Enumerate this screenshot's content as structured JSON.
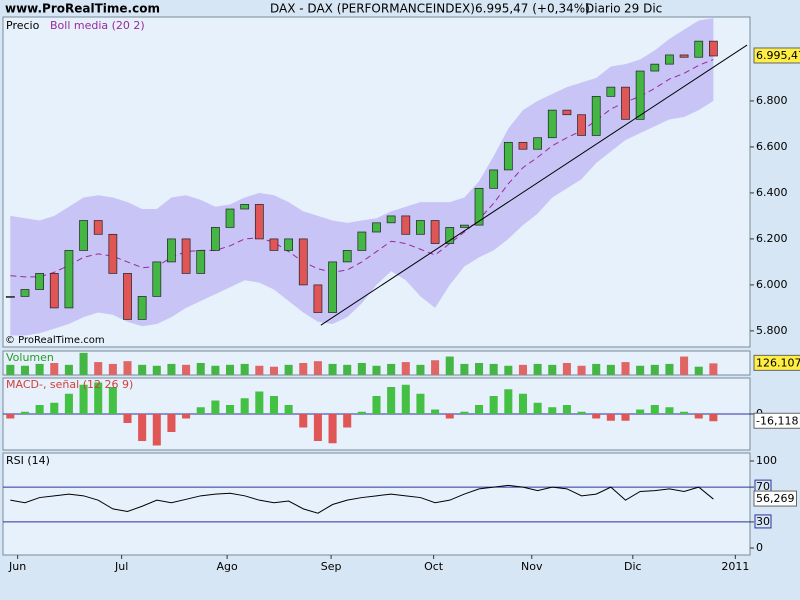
{
  "header": {
    "site": "www.ProRealTime.com",
    "title": "DAX - DAX (PERFORMANCEINDEX)",
    "quote": "6.995,47 (+0,34%)",
    "period": "Diario",
    "date": "29 Dic"
  },
  "chart_data": [
    {
      "type": "candlestick",
      "label": "Precio",
      "overlay_label": "Boll media (20 2)",
      "copyright": "© ProRealTime.com",
      "up_color": "#44b644",
      "down_color": "#e05555",
      "band_color": "#c8c4f6",
      "mid_color": "#9a2a9a",
      "x": [
        0.5,
        1.5,
        2.5,
        3.5,
        4.5,
        5.5,
        6.5,
        7.5,
        8.5,
        9.5,
        10.5,
        11.5,
        12.5,
        13.5,
        14.5,
        15.5,
        16.5,
        17.5,
        18.5,
        19.5,
        20.5,
        21.5,
        22.5,
        23.5,
        24.5,
        25.5,
        26.5,
        27.5,
        28.5,
        29.5,
        30.5,
        31.5,
        32.5,
        33.5,
        34.5,
        35.5,
        36.5,
        37.5,
        38.5,
        39.5,
        40.5,
        41.5,
        42.5,
        43.5,
        44.5,
        45.5,
        46.5,
        47.5,
        48.5
      ],
      "values": [
        5950,
        5980,
        6050,
        5900,
        6150,
        6280,
        6220,
        6050,
        5850,
        5950,
        6100,
        6200,
        6050,
        6150,
        6250,
        6330,
        6350,
        6200,
        6150,
        6200,
        6000,
        5880,
        6100,
        6150,
        6230,
        6270,
        6300,
        6220,
        6280,
        6180,
        6250,
        6260,
        6420,
        6500,
        6620,
        6590,
        6640,
        6760,
        6740,
        6650,
        6820,
        6860,
        6720,
        6930,
        6960,
        7000,
        6990,
        7060,
        6995.47
      ],
      "value_labels": [
        null,
        null,
        null,
        null,
        null,
        null,
        null,
        null,
        null,
        null,
        null,
        null,
        null,
        null,
        null,
        null,
        null,
        null,
        null,
        null,
        null,
        null,
        null,
        null,
        null,
        null,
        null,
        null,
        null,
        null,
        null,
        null,
        null,
        null,
        null,
        null,
        null,
        null,
        null,
        null,
        null,
        null,
        null,
        null,
        null,
        null,
        null,
        null,
        "6.995,47"
      ],
      "band_upper": [
        6300,
        6290,
        6280,
        6300,
        6340,
        6380,
        6390,
        6380,
        6360,
        6330,
        6330,
        6380,
        6390,
        6370,
        6340,
        6350,
        6380,
        6400,
        6390,
        6360,
        6320,
        6300,
        6280,
        6270,
        6280,
        6290,
        6320,
        6340,
        6360,
        6360,
        6360,
        6380,
        6450,
        6560,
        6680,
        6760,
        6800,
        6830,
        6860,
        6880,
        6900,
        6950,
        6960,
        6980,
        7020,
        7070,
        7110,
        7150,
        7160
      ],
      "band_lower": [
        5780,
        5780,
        5790,
        5810,
        5830,
        5860,
        5880,
        5870,
        5840,
        5820,
        5830,
        5860,
        5900,
        5930,
        5960,
        5990,
        6020,
        6010,
        5980,
        5930,
        5880,
        5840,
        5830,
        5860,
        5920,
        6000,
        6060,
        6020,
        5950,
        5900,
        6000,
        6080,
        6120,
        6150,
        6200,
        6260,
        6310,
        6380,
        6420,
        6460,
        6530,
        6580,
        6630,
        6660,
        6690,
        6720,
        6730,
        6760,
        6800
      ],
      "band_mid": [
        6040,
        6035,
        6035,
        6055,
        6085,
        6120,
        6135,
        6125,
        6100,
        6075,
        6080,
        6120,
        6145,
        6150,
        6150,
        6170,
        6200,
        6205,
        6185,
        6145,
        6100,
        6070,
        6055,
        6065,
        6100,
        6145,
        6190,
        6180,
        6155,
        6130,
        6180,
        6230,
        6285,
        6355,
        6440,
        6510,
        6555,
        6605,
        6640,
        6670,
        6715,
        6765,
        6795,
        6820,
        6855,
        6895,
        6920,
        6955,
        6980
      ],
      "trendline": {
        "x": [
          21.7,
          50.8
        ],
        "y": [
          5825,
          7043
        ]
      },
      "xlim": [
        0,
        51
      ],
      "ylim": [
        5730,
        7165
      ],
      "yticks": [
        {
          "value": 5800,
          "label": "5.800"
        },
        {
          "value": 6000,
          "label": "6.000"
        },
        {
          "value": 6200,
          "label": "6.200"
        },
        {
          "value": 6400,
          "label": "6.400"
        },
        {
          "value": 6600,
          "label": "6.600"
        },
        {
          "value": 6800,
          "label": "6.800"
        }
      ]
    },
    {
      "type": "bar",
      "label": "Volumen",
      "color_rule": "change",
      "x": [
        0.5,
        1.5,
        2.5,
        3.5,
        4.5,
        5.5,
        6.5,
        7.5,
        8.5,
        9.5,
        10.5,
        11.5,
        12.5,
        13.5,
        14.5,
        15.5,
        16.5,
        17.5,
        18.5,
        19.5,
        20.5,
        21.5,
        22.5,
        23.5,
        24.5,
        25.5,
        26.5,
        27.5,
        28.5,
        29.5,
        30.5,
        31.5,
        32.5,
        33.5,
        34.5,
        35.5,
        36.5,
        37.5,
        38.5,
        39.5,
        40.5,
        41.5,
        42.5,
        43.5,
        44.5,
        45.5,
        46.5,
        47.5,
        48.5
      ],
      "values": [
        110000,
        100000,
        120000,
        130000,
        110000,
        240000,
        140000,
        120000,
        150000,
        110000,
        100000,
        120000,
        110000,
        130000,
        100000,
        110000,
        120000,
        100000,
        90000,
        110000,
        130000,
        150000,
        120000,
        110000,
        130000,
        100000,
        120000,
        140000,
        110000,
        160000,
        200000,
        120000,
        130000,
        120000,
        100000,
        110000,
        120000,
        110000,
        130000,
        100000,
        120000,
        110000,
        140000,
        100000,
        110000,
        120000,
        200000,
        90000,
        126107
      ],
      "value_labels": [
        null,
        null,
        null,
        null,
        null,
        null,
        null,
        null,
        null,
        null,
        null,
        null,
        null,
        null,
        null,
        null,
        null,
        null,
        null,
        null,
        null,
        null,
        null,
        null,
        null,
        null,
        null,
        null,
        null,
        null,
        null,
        null,
        null,
        null,
        null,
        null,
        null,
        null,
        null,
        null,
        null,
        null,
        null,
        null,
        null,
        null,
        null,
        null,
        "126.107"
      ],
      "xlim": [
        0,
        51
      ],
      "ylim": [
        0,
        260000
      ]
    },
    {
      "type": "bar",
      "label": "MACD-, señal (12 26 9)",
      "color_rule": "sign",
      "x": [
        0.5,
        1.5,
        2.5,
        3.5,
        4.5,
        5.5,
        6.5,
        7.5,
        8.5,
        9.5,
        10.5,
        11.5,
        12.5,
        13.5,
        14.5,
        15.5,
        16.5,
        17.5,
        18.5,
        19.5,
        20.5,
        21.5,
        22.5,
        23.5,
        24.5,
        25.5,
        26.5,
        27.5,
        28.5,
        29.5,
        30.5,
        31.5,
        32.5,
        33.5,
        34.5,
        35.5,
        36.5,
        37.5,
        38.5,
        39.5,
        40.5,
        41.5,
        42.5,
        43.5,
        44.5,
        45.5,
        46.5,
        47.5,
        48.5
      ],
      "values": [
        -10,
        5,
        20,
        25,
        45,
        65,
        70,
        60,
        -20,
        -60,
        -70,
        -40,
        -10,
        15,
        30,
        20,
        35,
        50,
        40,
        20,
        -30,
        -60,
        -65,
        -30,
        5,
        40,
        60,
        65,
        45,
        10,
        -10,
        5,
        20,
        40,
        55,
        45,
        25,
        15,
        20,
        5,
        -10,
        -15,
        -15,
        10,
        20,
        15,
        5,
        -10,
        -16.118
      ],
      "value_labels": [
        null,
        null,
        null,
        null,
        null,
        null,
        null,
        null,
        null,
        null,
        null,
        null,
        null,
        null,
        null,
        null,
        null,
        null,
        null,
        null,
        null,
        null,
        null,
        null,
        null,
        null,
        null,
        null,
        null,
        null,
        null,
        null,
        null,
        null,
        null,
        null,
        null,
        null,
        null,
        null,
        null,
        null,
        null,
        null,
        null,
        null,
        null,
        null,
        "-16,118"
      ],
      "xlim": [
        0,
        51
      ],
      "ylim": [
        -80,
        80
      ],
      "yticks": [
        0
      ]
    },
    {
      "type": "line",
      "label": "RSI (14)",
      "color": "#000000",
      "x": [
        0.5,
        1.5,
        2.5,
        3.5,
        4.5,
        5.5,
        6.5,
        7.5,
        8.5,
        9.5,
        10.5,
        11.5,
        12.5,
        13.5,
        14.5,
        15.5,
        16.5,
        17.5,
        18.5,
        19.5,
        20.5,
        21.5,
        22.5,
        23.5,
        24.5,
        25.5,
        26.5,
        27.5,
        28.5,
        29.5,
        30.5,
        31.5,
        32.5,
        33.5,
        34.5,
        35.5,
        36.5,
        37.5,
        38.5,
        39.5,
        40.5,
        41.5,
        42.5,
        43.5,
        44.5,
        45.5,
        46.5,
        47.5,
        48.5
      ],
      "values": [
        55,
        52,
        58,
        60,
        62,
        60,
        55,
        45,
        42,
        48,
        55,
        52,
        56,
        60,
        62,
        63,
        60,
        55,
        52,
        54,
        45,
        40,
        50,
        55,
        58,
        60,
        62,
        60,
        58,
        52,
        55,
        62,
        68,
        70,
        72,
        70,
        66,
        70,
        68,
        60,
        62,
        70,
        55,
        65,
        66,
        68,
        65,
        70,
        56.269
      ],
      "value_labels": [
        null,
        null,
        null,
        null,
        null,
        null,
        null,
        null,
        null,
        null,
        null,
        null,
        null,
        null,
        null,
        null,
        null,
        null,
        null,
        null,
        null,
        null,
        null,
        null,
        null,
        null,
        null,
        null,
        null,
        null,
        null,
        null,
        null,
        null,
        null,
        null,
        null,
        null,
        null,
        null,
        null,
        null,
        null,
        null,
        null,
        null,
        null,
        null,
        "56,269"
      ],
      "xlim": [
        0,
        51
      ],
      "ylim": [
        -8,
        109.2
      ],
      "yticks": [
        0,
        30,
        70,
        100
      ],
      "xticks": [
        {
          "value": 1.0,
          "label": "Jun"
        },
        {
          "value": 8.1,
          "label": "Jul"
        },
        {
          "value": 15.3,
          "label": "Ago"
        },
        {
          "value": 22.4,
          "label": "Sep"
        },
        {
          "value": 29.4,
          "label": "Oct"
        },
        {
          "value": 36.1,
          "label": "Nov"
        },
        {
          "value": 43.0,
          "label": "Dic"
        },
        {
          "value": 50.0,
          "label": "2011"
        }
      ]
    }
  ]
}
